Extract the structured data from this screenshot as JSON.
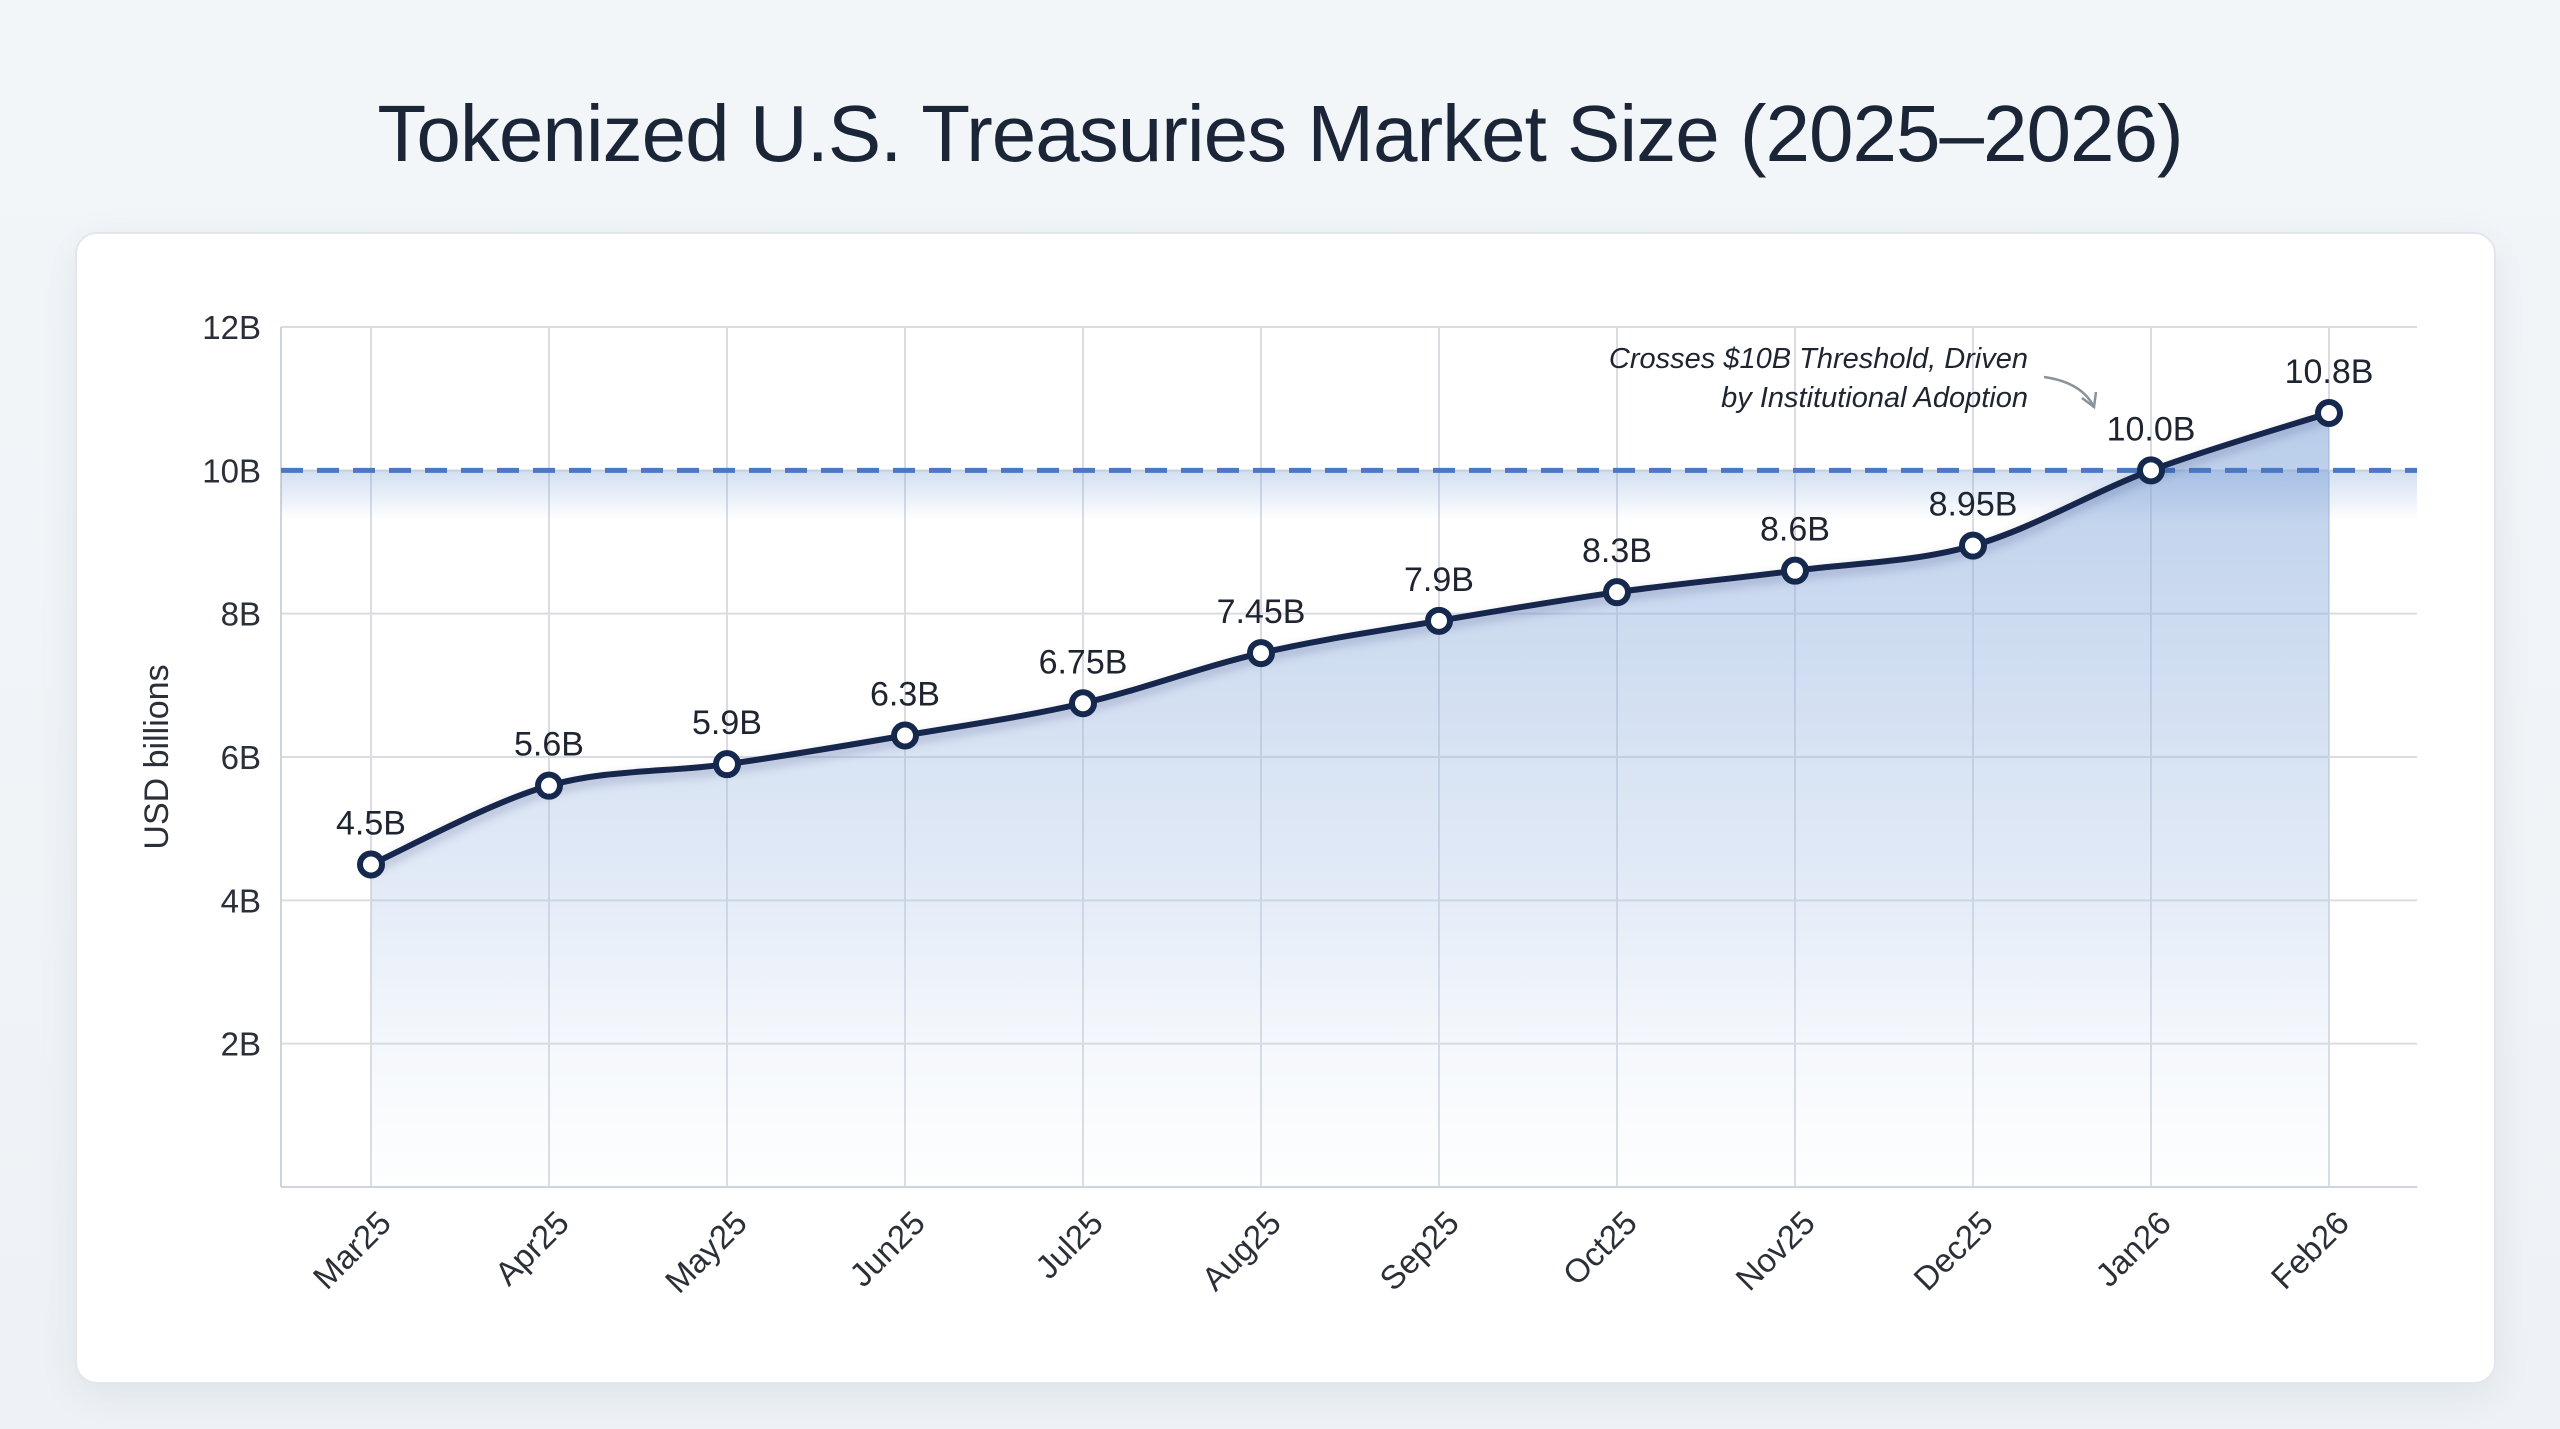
{
  "title": "Tokenized U.S. Treasuries Market Size (2025–2026)",
  "chart_data": {
    "type": "area",
    "title": "Tokenized U.S. Treasuries Market Size (2025–2026)",
    "xlabel": "",
    "ylabel": "USD billions",
    "categories": [
      "Mar25",
      "Apr25",
      "May25",
      "Jun25",
      "Jul25",
      "Aug25",
      "Sep25",
      "Oct25",
      "Nov25",
      "Dec25",
      "Jan26",
      "Feb26"
    ],
    "values": [
      4.5,
      5.6,
      5.9,
      6.3,
      6.75,
      7.45,
      7.9,
      8.3,
      8.6,
      8.95,
      10.0,
      10.8
    ],
    "data_labels": [
      "4.5B",
      "5.6B",
      "5.9B",
      "6.3B",
      "6.75B",
      "7.45B",
      "7.9B",
      "8.3B",
      "8.6B",
      "8.95B",
      "10.0B",
      "10.8B"
    ],
    "ylim": [
      0,
      12
    ],
    "yticks": [
      2,
      4,
      6,
      8,
      10,
      12
    ],
    "ytick_labels": [
      "2B",
      "4B",
      "6B",
      "8B",
      "10B",
      "12B"
    ],
    "grid": true,
    "reference_line": {
      "value": 10,
      "style": "dashed"
    },
    "annotation": {
      "lines": [
        "Crosses $10B Threshold, Driven",
        "by Institutional Adoption"
      ],
      "target": "Jan26"
    },
    "colors": {
      "line": "#15284d",
      "fill": "#7ea3d8",
      "reference": "#4a78c2",
      "grid": "#d9dde3"
    }
  }
}
